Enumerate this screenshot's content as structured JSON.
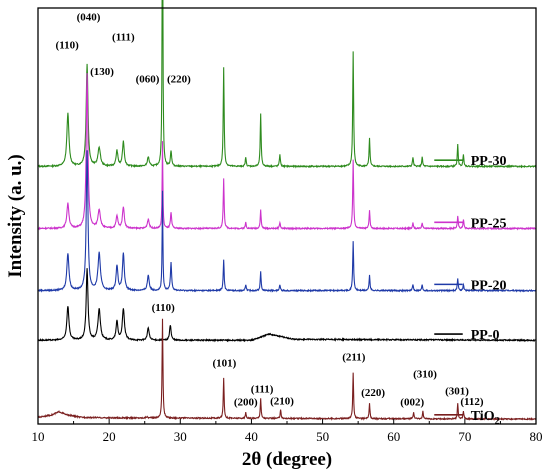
{
  "chart_data": {
    "type": "line",
    "xlabel": "2θ (degree)",
    "ylabel": "Intensity (a. u.)",
    "xlim": [
      10,
      80
    ],
    "x_ticks": [
      10,
      20,
      30,
      40,
      50,
      60,
      70,
      80
    ],
    "y_ticks_shown": false,
    "grid": false,
    "series": [
      {
        "name": "PP-30",
        "color": "#2e8b1e",
        "baseline": 0.82,
        "background": [
          [
            10,
            0.0
          ],
          [
            80,
            0.0
          ]
        ],
        "peaks": [
          [
            14.2,
            0.17,
            0.35
          ],
          [
            16.9,
            0.33,
            0.3
          ],
          [
            18.6,
            0.06,
            0.4
          ],
          [
            21.1,
            0.05,
            0.3
          ],
          [
            22.0,
            0.08,
            0.3
          ],
          [
            25.5,
            0.03,
            0.3
          ],
          [
            27.5,
            1.0,
            0.12
          ],
          [
            28.7,
            0.05,
            0.2
          ],
          [
            36.1,
            0.32,
            0.15
          ],
          [
            39.2,
            0.03,
            0.15
          ],
          [
            41.3,
            0.17,
            0.15
          ],
          [
            44.0,
            0.04,
            0.15
          ],
          [
            54.3,
            0.37,
            0.15
          ],
          [
            56.6,
            0.09,
            0.15
          ],
          [
            62.7,
            0.03,
            0.15
          ],
          [
            64.0,
            0.03,
            0.15
          ],
          [
            69.0,
            0.07,
            0.15
          ],
          [
            69.8,
            0.04,
            0.15
          ]
        ]
      },
      {
        "name": "PP-25",
        "color": "#cc33cc",
        "baseline": 0.62,
        "background": [
          [
            10,
            0.0
          ],
          [
            80,
            0.0
          ]
        ],
        "peaks": [
          [
            14.2,
            0.08,
            0.35
          ],
          [
            16.9,
            0.5,
            0.28
          ],
          [
            18.6,
            0.06,
            0.4
          ],
          [
            21.1,
            0.04,
            0.3
          ],
          [
            22.0,
            0.07,
            0.3
          ],
          [
            25.5,
            0.03,
            0.3
          ],
          [
            27.5,
            0.28,
            0.12
          ],
          [
            28.7,
            0.05,
            0.2
          ],
          [
            36.1,
            0.16,
            0.15
          ],
          [
            39.2,
            0.02,
            0.15
          ],
          [
            41.3,
            0.06,
            0.15
          ],
          [
            44.0,
            0.02,
            0.15
          ],
          [
            54.3,
            0.22,
            0.15
          ],
          [
            56.6,
            0.06,
            0.15
          ],
          [
            62.7,
            0.02,
            0.15
          ],
          [
            64.0,
            0.02,
            0.15
          ],
          [
            69.0,
            0.04,
            0.15
          ],
          [
            69.8,
            0.03,
            0.15
          ]
        ]
      },
      {
        "name": "PP-20",
        "color": "#1f3aa8",
        "baseline": 0.42,
        "background": [
          [
            10,
            0.0
          ],
          [
            80,
            0.0
          ]
        ],
        "peaks": [
          [
            14.2,
            0.12,
            0.35
          ],
          [
            16.9,
            0.45,
            0.28
          ],
          [
            18.6,
            0.12,
            0.4
          ],
          [
            21.1,
            0.08,
            0.3
          ],
          [
            22.0,
            0.12,
            0.3
          ],
          [
            25.5,
            0.05,
            0.3
          ],
          [
            27.5,
            0.32,
            0.12
          ],
          [
            28.7,
            0.09,
            0.2
          ],
          [
            36.1,
            0.1,
            0.15
          ],
          [
            39.2,
            0.02,
            0.15
          ],
          [
            41.3,
            0.06,
            0.15
          ],
          [
            44.0,
            0.02,
            0.15
          ],
          [
            54.3,
            0.16,
            0.15
          ],
          [
            56.6,
            0.05,
            0.15
          ],
          [
            62.7,
            0.02,
            0.15
          ],
          [
            64.0,
            0.02,
            0.15
          ],
          [
            69.0,
            0.04,
            0.15
          ],
          [
            69.8,
            0.02,
            0.15
          ]
        ]
      },
      {
        "name": "PP-0",
        "color": "#000000",
        "baseline": 0.26,
        "background": [
          [
            10,
            0.0
          ],
          [
            40,
            0.0
          ],
          [
            42.5,
            0.02
          ],
          [
            46,
            0.003
          ],
          [
            80,
            0.0
          ]
        ],
        "peaks": [
          [
            14.2,
            0.11,
            0.35
          ],
          [
            16.9,
            0.23,
            0.3
          ],
          [
            18.6,
            0.1,
            0.4
          ],
          [
            21.1,
            0.06,
            0.3
          ],
          [
            22.0,
            0.1,
            0.35
          ],
          [
            25.5,
            0.04,
            0.3
          ],
          [
            28.6,
            0.05,
            0.25
          ]
        ]
      },
      {
        "name": "TiO2",
        "color": "#7a1f1f",
        "baseline": 0.0,
        "background": [
          [
            10,
            0.012
          ],
          [
            12,
            0.02
          ],
          [
            13,
            0.03
          ],
          [
            14,
            0.02
          ],
          [
            16,
            0.012
          ],
          [
            20,
            0.01
          ],
          [
            80,
            0.006
          ]
        ],
        "peaks": [
          [
            25.3,
            0.004,
            0.3
          ],
          [
            27.5,
            0.32,
            0.14
          ],
          [
            36.1,
            0.13,
            0.14
          ],
          [
            39.2,
            0.018,
            0.14
          ],
          [
            41.3,
            0.065,
            0.14
          ],
          [
            44.1,
            0.03,
            0.14
          ],
          [
            54.3,
            0.15,
            0.14
          ],
          [
            56.6,
            0.05,
            0.14
          ],
          [
            62.8,
            0.022,
            0.14
          ],
          [
            64.1,
            0.024,
            0.14
          ],
          [
            69.0,
            0.05,
            0.14
          ],
          [
            69.8,
            0.025,
            0.14
          ]
        ]
      }
    ],
    "peak_labels": [
      {
        "text": "(040)",
        "x": 17.1,
        "y": 1.29
      },
      {
        "text": "(110)",
        "x": 14.1,
        "y": 1.2
      },
      {
        "text": "(130)",
        "x": 19.0,
        "y": 1.115
      },
      {
        "text": "(111)",
        "x": 22.0,
        "y": 1.226
      },
      {
        "text": "(060)",
        "x": 25.4,
        "y": 1.09
      },
      {
        "text": "(220)",
        "x": 29.8,
        "y": 1.09
      },
      {
        "text": "(110)",
        "x": 27.6,
        "y": 0.355
      },
      {
        "text": "(101)",
        "x": 36.2,
        "y": 0.175
      },
      {
        "text": "(200)",
        "x": 39.2,
        "y": 0.05
      },
      {
        "text": "(111)",
        "x": 41.5,
        "y": 0.092
      },
      {
        "text": "(210)",
        "x": 44.3,
        "y": 0.053
      },
      {
        "text": "(211)",
        "x": 54.4,
        "y": 0.195
      },
      {
        "text": "(220)",
        "x": 57.1,
        "y": 0.08
      },
      {
        "text": "(002)",
        "x": 62.6,
        "y": 0.05
      },
      {
        "text": "(310)",
        "x": 64.4,
        "y": 0.14
      },
      {
        "text": "(301)",
        "x": 68.9,
        "y": 0.085
      },
      {
        "text": "(112)",
        "x": 71.0,
        "y": 0.052
      }
    ],
    "legend_placement": "right, beside each curve",
    "legend": [
      {
        "label": "PP-30",
        "series": "PP-30"
      },
      {
        "label": "PP-25",
        "series": "PP-25"
      },
      {
        "label": "PP-20",
        "series": "PP-20"
      },
      {
        "label": "PP-0",
        "series": "PP-0"
      },
      {
        "label": "TiO",
        "sub": "2",
        "series": "TiO2"
      }
    ]
  }
}
